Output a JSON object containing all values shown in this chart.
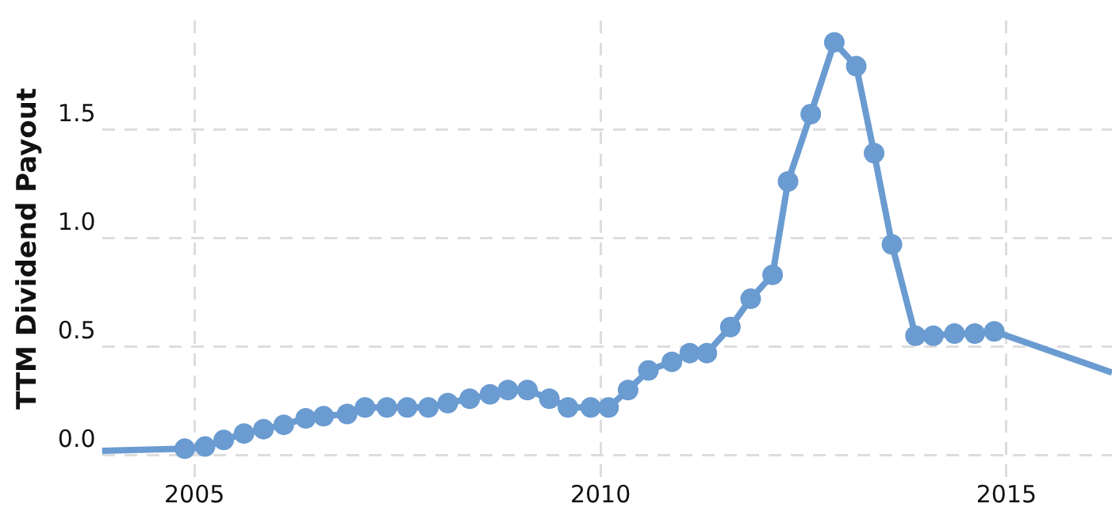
{
  "chart_data": {
    "type": "line",
    "ylabel": "TTM Dividend Payout",
    "xlim": [
      2003.86,
      2016.3
    ],
    "xticks": [
      2005,
      2010,
      2015
    ],
    "ylim": [
      -0.1,
      2.0
    ],
    "yticks": [
      {
        "value": 0,
        "label": "0.0"
      },
      {
        "value": 0.5,
        "label": "0.5"
      },
      {
        "value": 1,
        "label": "1.0"
      },
      {
        "value": 1.5,
        "label": "1.5"
      }
    ],
    "grid": true,
    "marker": "circle",
    "line_style": "solid",
    "x": [
      2003.86,
      2004.88,
      2005.13,
      2005.36,
      2005.61,
      2005.85,
      2006.1,
      2006.37,
      2006.59,
      2006.88,
      2007.1,
      2007.37,
      2007.62,
      2007.88,
      2008.12,
      2008.39,
      2008.64,
      2008.86,
      2009.1,
      2009.37,
      2009.6,
      2009.88,
      2010.1,
      2010.34,
      2010.59,
      2010.88,
      2011.1,
      2011.31,
      2011.6,
      2011.85,
      2012.12,
      2012.31,
      2012.59,
      2012.88,
      2013.15,
      2013.37,
      2013.59,
      2013.88,
      2014.1,
      2014.36,
      2014.61,
      2014.85,
      2016.3
    ],
    "series": [
      {
        "color": "#6a9bd1",
        "values": [
          0.02,
          0.03,
          0.04,
          0.07,
          0.1,
          0.12,
          0.14,
          0.17,
          0.18,
          0.19,
          0.22,
          0.22,
          0.22,
          0.22,
          0.24,
          0.26,
          0.28,
          0.3,
          0.3,
          0.26,
          0.22,
          0.22,
          0.22,
          0.3,
          0.39,
          0.43,
          0.47,
          0.47,
          0.59,
          0.72,
          0.83,
          1.26,
          1.57,
          1.9,
          1.79,
          1.39,
          0.97,
          0.55,
          0.55,
          0.56,
          0.56,
          0.57,
          0.38
        ]
      }
    ]
  }
}
